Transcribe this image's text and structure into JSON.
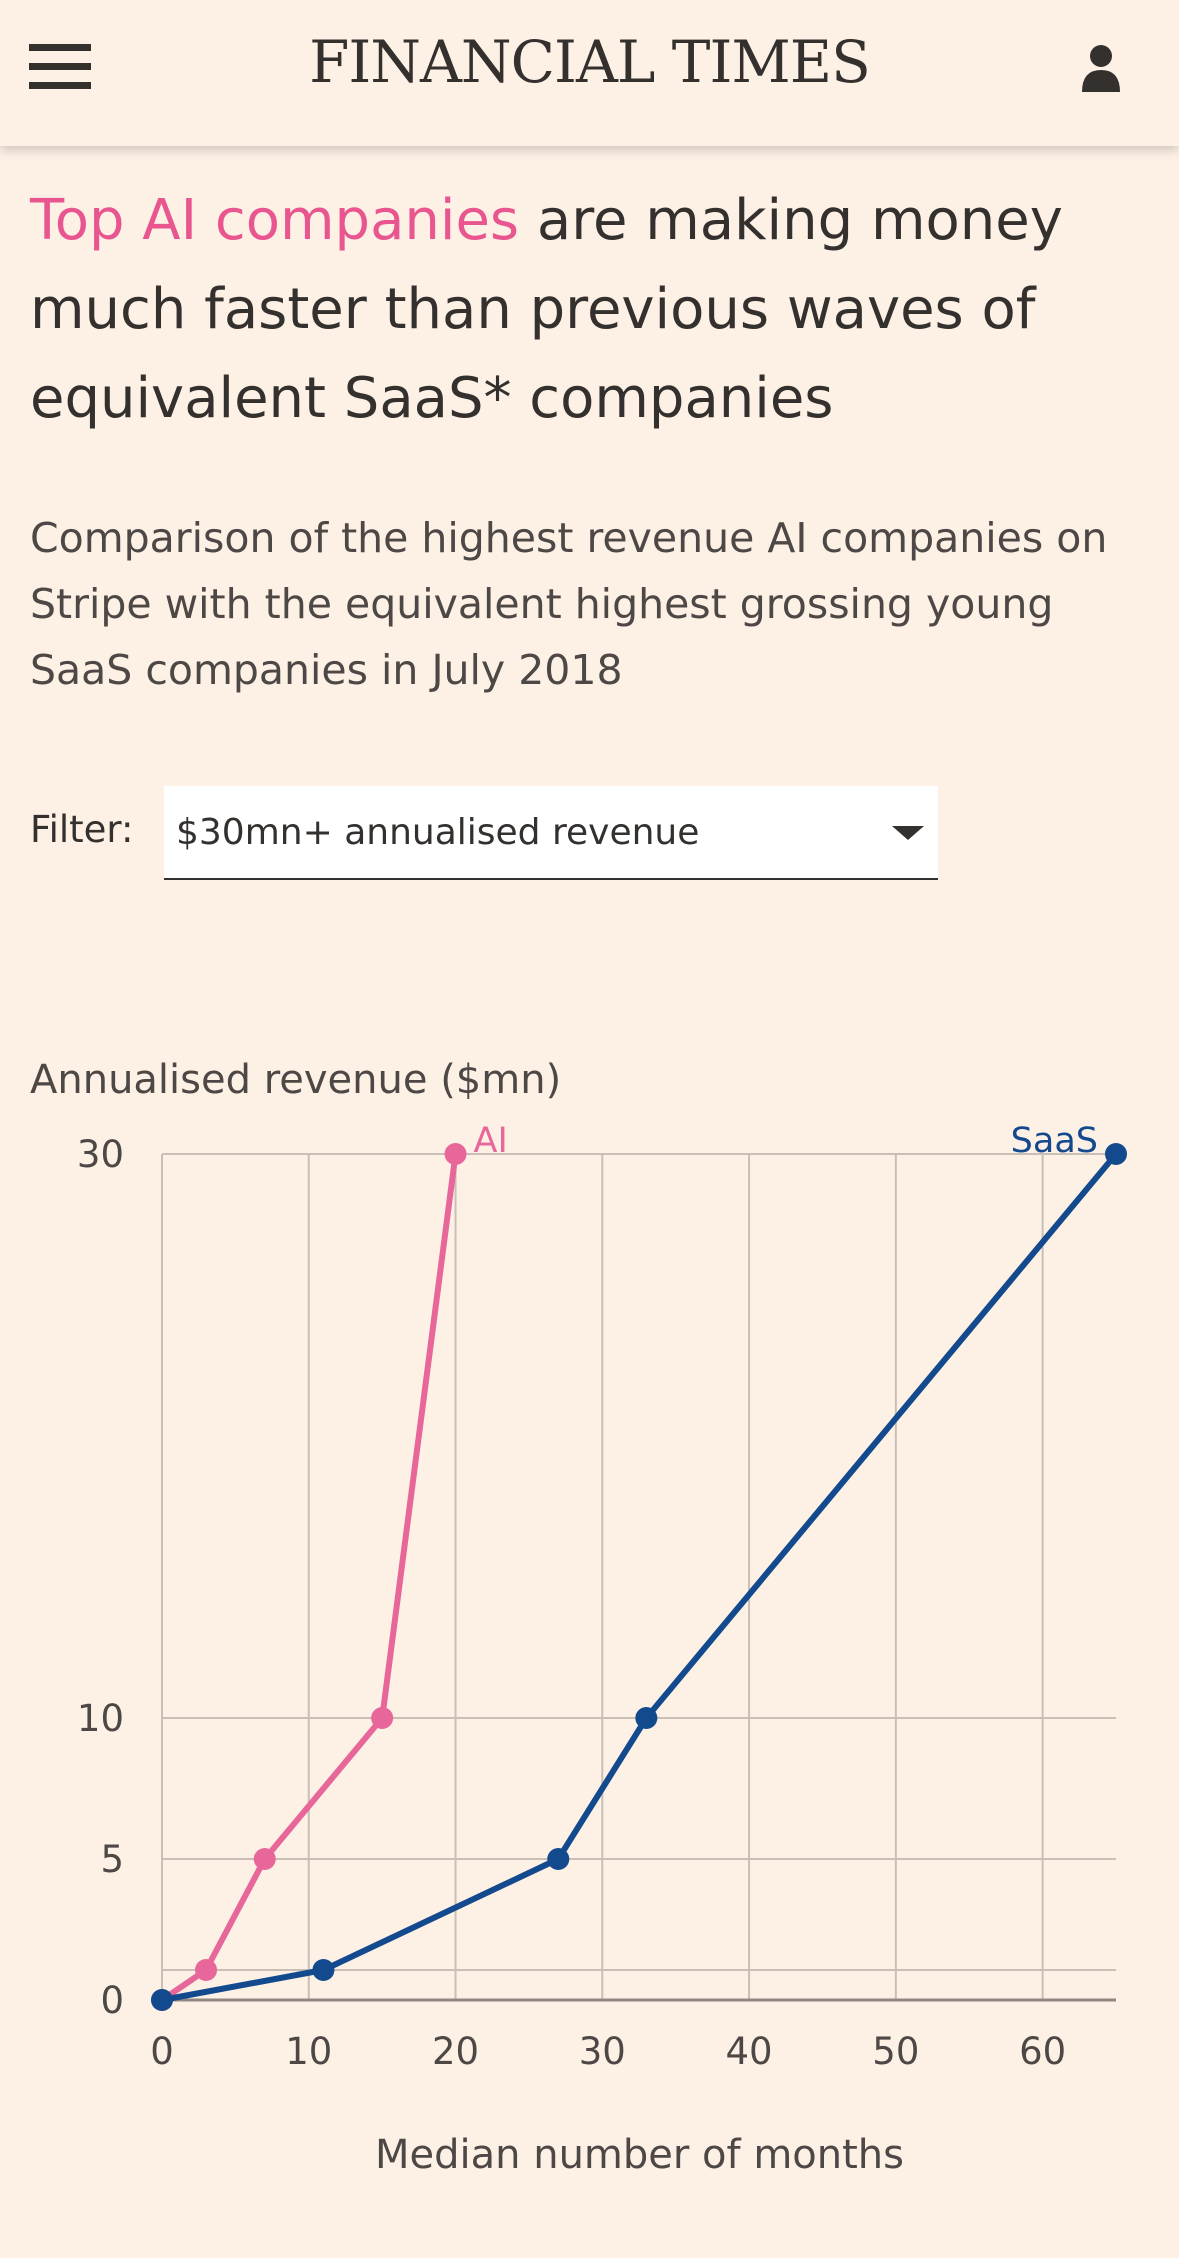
{
  "header": {
    "brand": "FINANCIAL TIMES",
    "menu_icon": "hamburger-menu-icon",
    "user_icon": "user-account-icon"
  },
  "headline": {
    "accent_text": "Top AI companies",
    "rest_text": " are making money much faster than previous waves of equivalent SaaS* companies"
  },
  "subtitle": "Comparison of the highest revenue AI companies on Stripe with the equivalent highest grossing young SaaS companies in July 2018",
  "filter": {
    "label": "Filter:",
    "selected": "$30mn+ annualised revenue"
  },
  "colors": {
    "ai": "#e8679a",
    "saas": "#134a8e",
    "accent": "#e9558f",
    "background": "#fdf1e6"
  },
  "chart_data": {
    "type": "line",
    "title": "",
    "ylabel": "Annualised revenue ($mn)",
    "xlabel": "Median number of months",
    "xlim": [
      0,
      65
    ],
    "ylim": [
      0,
      30
    ],
    "x_ticks": [
      0,
      10,
      20,
      30,
      40,
      50,
      60
    ],
    "x_tick_labels": [
      "0",
      "10",
      "20",
      "30",
      "40",
      "50",
      "60"
    ],
    "y_tick_levels": [
      0,
      1,
      5,
      10,
      30
    ],
    "y_tick_labels": [
      "0",
      "",
      "5",
      "10",
      "30"
    ],
    "grid": true,
    "series": [
      {
        "name": "AI",
        "label": "AI",
        "color": "#e8679a",
        "points": [
          [
            0,
            0
          ],
          [
            3,
            1
          ],
          [
            7,
            5
          ],
          [
            15,
            10
          ],
          [
            20,
            30
          ]
        ]
      },
      {
        "name": "SaaS",
        "label": "SaaS",
        "color": "#134a8e",
        "points": [
          [
            0,
            0
          ],
          [
            11,
            1
          ],
          [
            27,
            5
          ],
          [
            33,
            10
          ],
          [
            65,
            30
          ]
        ]
      }
    ]
  }
}
